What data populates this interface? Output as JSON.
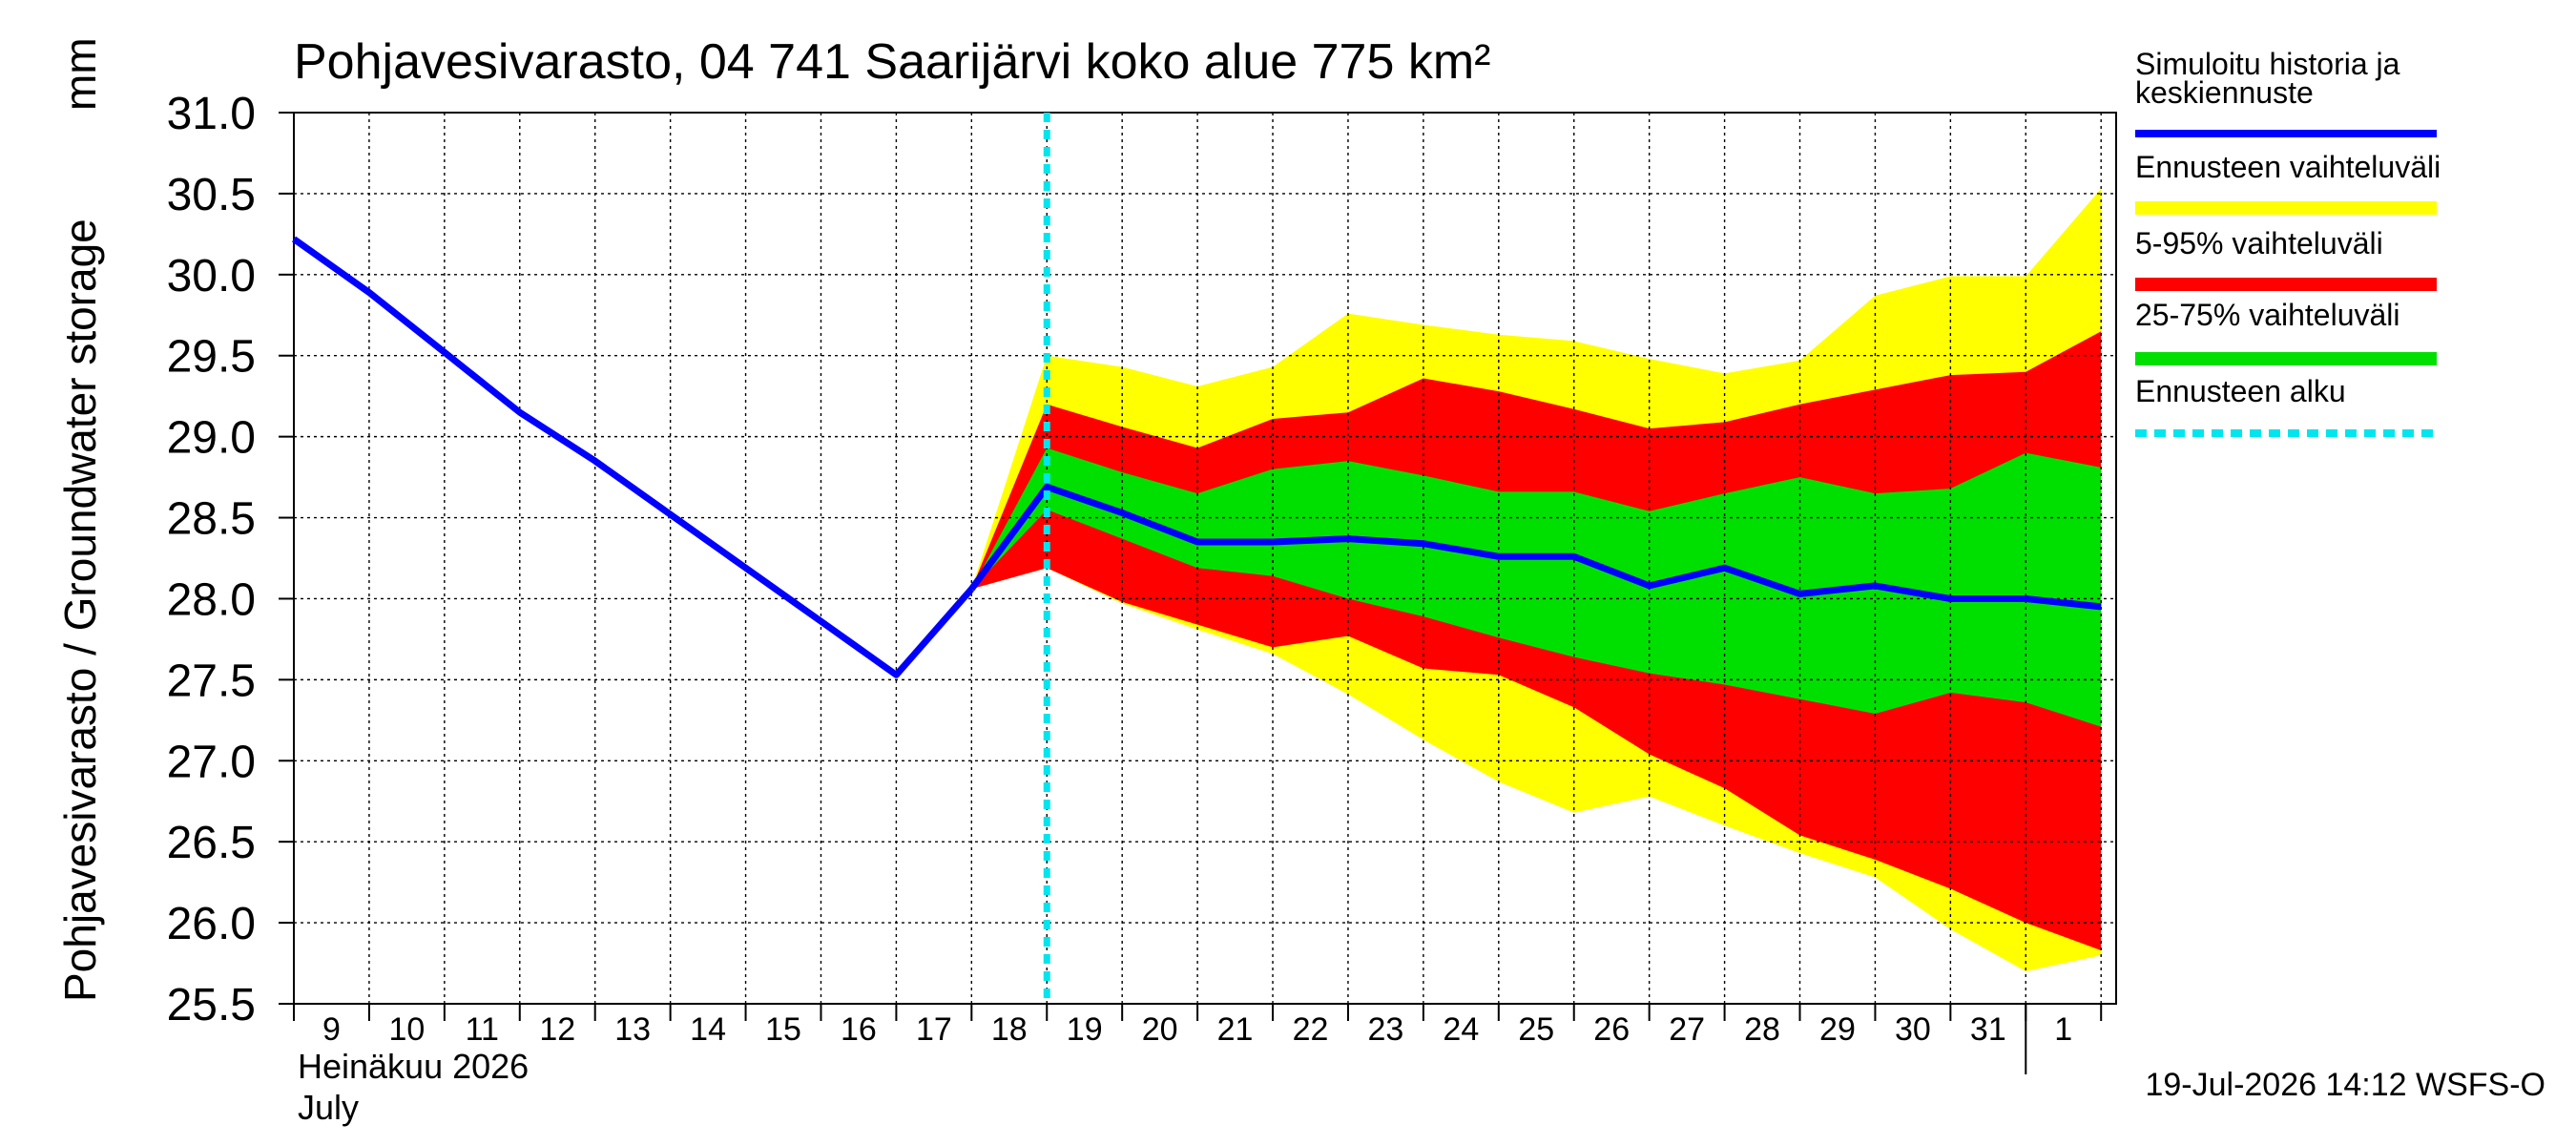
{
  "chart_data": {
    "type": "area",
    "title": "Pohjavesivarasto, 04 741 Saarijärvi koko alue 775 km²",
    "ylabel": "Pohjavesivarasto / Groundwater storage",
    "yunit": "mm",
    "ylim": [
      25.5,
      31.0
    ],
    "yticks": [
      "25.5",
      "26.0",
      "26.5",
      "27.0",
      "27.5",
      "28.0",
      "28.5",
      "29.0",
      "29.5",
      "30.0",
      "30.5",
      "31.0"
    ],
    "xlim": [
      9,
      33.2
    ],
    "xtick_labels": [
      "9",
      "10",
      "11",
      "12",
      "13",
      "14",
      "15",
      "16",
      "17",
      "18",
      "19",
      "20",
      "21",
      "22",
      "23",
      "24",
      "25",
      "26",
      "27",
      "28",
      "29",
      "30",
      "31",
      "1"
    ],
    "month_label_fi": "Heinäkuu  2026",
    "month_label_en": "July",
    "forecast_start": 19,
    "grid": true,
    "legend_position": "right",
    "legend": [
      {
        "key": "median",
        "label": "Simuloitu historia ja keskiennuste",
        "color": "#0000ff",
        "style": "line"
      },
      {
        "key": "range",
        "label": "Ennusteen vaihteluväli",
        "color": "#ffff00",
        "style": "band"
      },
      {
        "key": "p5_95",
        "label": "5-95% vaihteluväli",
        "color": "#ff0000",
        "style": "band"
      },
      {
        "key": "p25_75",
        "label": "25-75% vaihteluväli",
        "color": "#00e000",
        "style": "band"
      },
      {
        "key": "start",
        "label": "Ennusteen alku",
        "color": "#00e5ee",
        "style": "dashed"
      }
    ],
    "history": {
      "x": [
        9,
        10,
        11,
        12,
        13,
        14,
        15,
        16,
        17,
        18
      ],
      "y": [
        30.22,
        29.89,
        29.52,
        29.15,
        28.85,
        28.52,
        28.19,
        27.86,
        27.53,
        28.06
      ]
    },
    "forecast": {
      "x": [
        18,
        19,
        20,
        21,
        22,
        23,
        24,
        25,
        26,
        27,
        28,
        29,
        30,
        31,
        32,
        33
      ],
      "median": [
        28.06,
        28.69,
        28.53,
        28.35,
        28.35,
        28.37,
        28.34,
        28.26,
        28.26,
        28.08,
        28.19,
        28.03,
        28.08,
        28.0,
        28.0,
        27.95
      ],
      "max": [
        28.06,
        29.5,
        29.43,
        29.31,
        29.43,
        29.76,
        29.69,
        29.63,
        29.59,
        29.48,
        29.39,
        29.47,
        29.87,
        29.99,
        29.99,
        30.53
      ],
      "p95": [
        28.06,
        29.2,
        29.06,
        28.93,
        29.11,
        29.15,
        29.36,
        29.28,
        29.17,
        29.05,
        29.09,
        29.2,
        29.29,
        29.38,
        29.4,
        29.65
      ],
      "p75": [
        28.06,
        28.93,
        28.78,
        28.65,
        28.8,
        28.85,
        28.76,
        28.66,
        28.66,
        28.54,
        28.65,
        28.75,
        28.65,
        28.68,
        28.9,
        28.81
      ],
      "p25": [
        28.06,
        28.55,
        28.37,
        28.19,
        28.14,
        28.0,
        27.89,
        27.76,
        27.64,
        27.54,
        27.47,
        27.38,
        27.29,
        27.42,
        27.36,
        27.21
      ],
      "p5": [
        28.06,
        28.19,
        27.98,
        27.84,
        27.7,
        27.77,
        27.57,
        27.53,
        27.33,
        27.04,
        26.83,
        26.54,
        26.39,
        26.21,
        26.0,
        25.83
      ],
      "min": [
        28.06,
        28.19,
        27.97,
        27.81,
        27.66,
        27.41,
        27.13,
        26.87,
        26.68,
        26.78,
        26.6,
        26.43,
        26.28,
        25.96,
        25.7,
        25.8
      ]
    }
  },
  "footer": {
    "timestamp": "19-Jul-2026 14:12 WSFS-O"
  }
}
